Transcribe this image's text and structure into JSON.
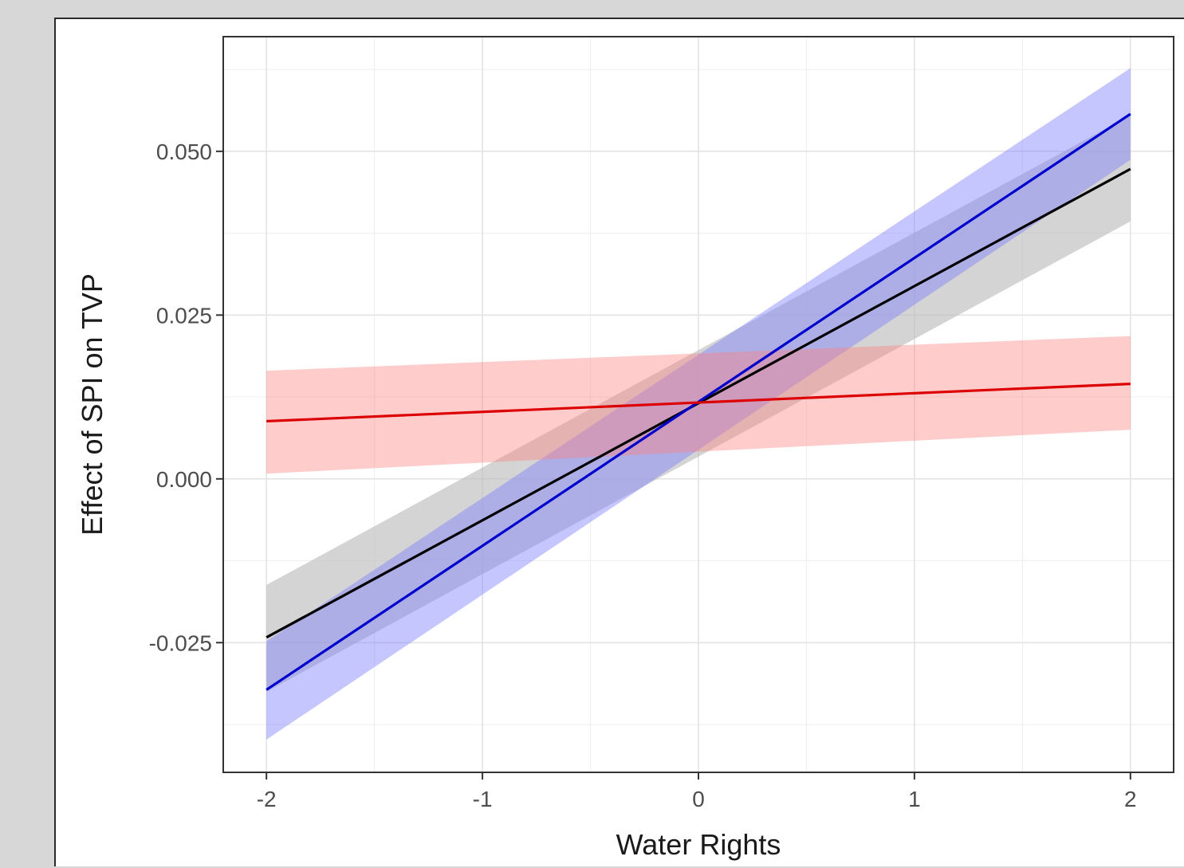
{
  "chart_data": {
    "type": "line",
    "title": "",
    "xlabel": "Water Rights",
    "ylabel": "Effect of SPI on TVP",
    "xlim": [
      -2.2,
      2.2
    ],
    "ylim": [
      -0.0448,
      0.0675
    ],
    "x_ticks": [
      -2,
      -1,
      0,
      1,
      2
    ],
    "x_tick_labels": [
      "-2",
      "-1",
      "0",
      "1",
      "2"
    ],
    "y_ticks": [
      -0.025,
      0.0,
      0.025,
      0.05
    ],
    "y_tick_labels": [
      "-0.025",
      "0.000",
      "0.025",
      "0.050"
    ],
    "x_minor_grid": [
      -1.5,
      -0.5,
      0.5,
      1.5
    ],
    "y_minor_grid": [
      -0.0375,
      -0.0125,
      0.0125,
      0.0375,
      0.0625
    ],
    "grid": true,
    "legend": "none",
    "series": [
      {
        "color": "#000000",
        "band_color": "#bdbdbd",
        "band_opacity": 0.65,
        "x": [
          -2,
          2
        ],
        "y": [
          -0.0242,
          0.0473
        ],
        "lower": [
          -0.0325,
          0.0393
        ],
        "upper": [
          -0.0162,
          0.0555
        ]
      },
      {
        "color": "#0000cc",
        "band_color": "#8080ff",
        "band_opacity": 0.45,
        "x": [
          -2,
          2
        ],
        "y": [
          -0.0322,
          0.0557
        ],
        "lower": [
          -0.0398,
          0.0487
        ],
        "upper": [
          -0.0248,
          0.0627
        ]
      },
      {
        "color": "#dd0000",
        "band_color": "#ff8080",
        "band_opacity": 0.4,
        "x": [
          -2,
          2
        ],
        "y": [
          0.0088,
          0.0145
        ],
        "lower": [
          0.0008,
          0.0075
        ],
        "upper": [
          0.0165,
          0.0218
        ]
      }
    ]
  }
}
